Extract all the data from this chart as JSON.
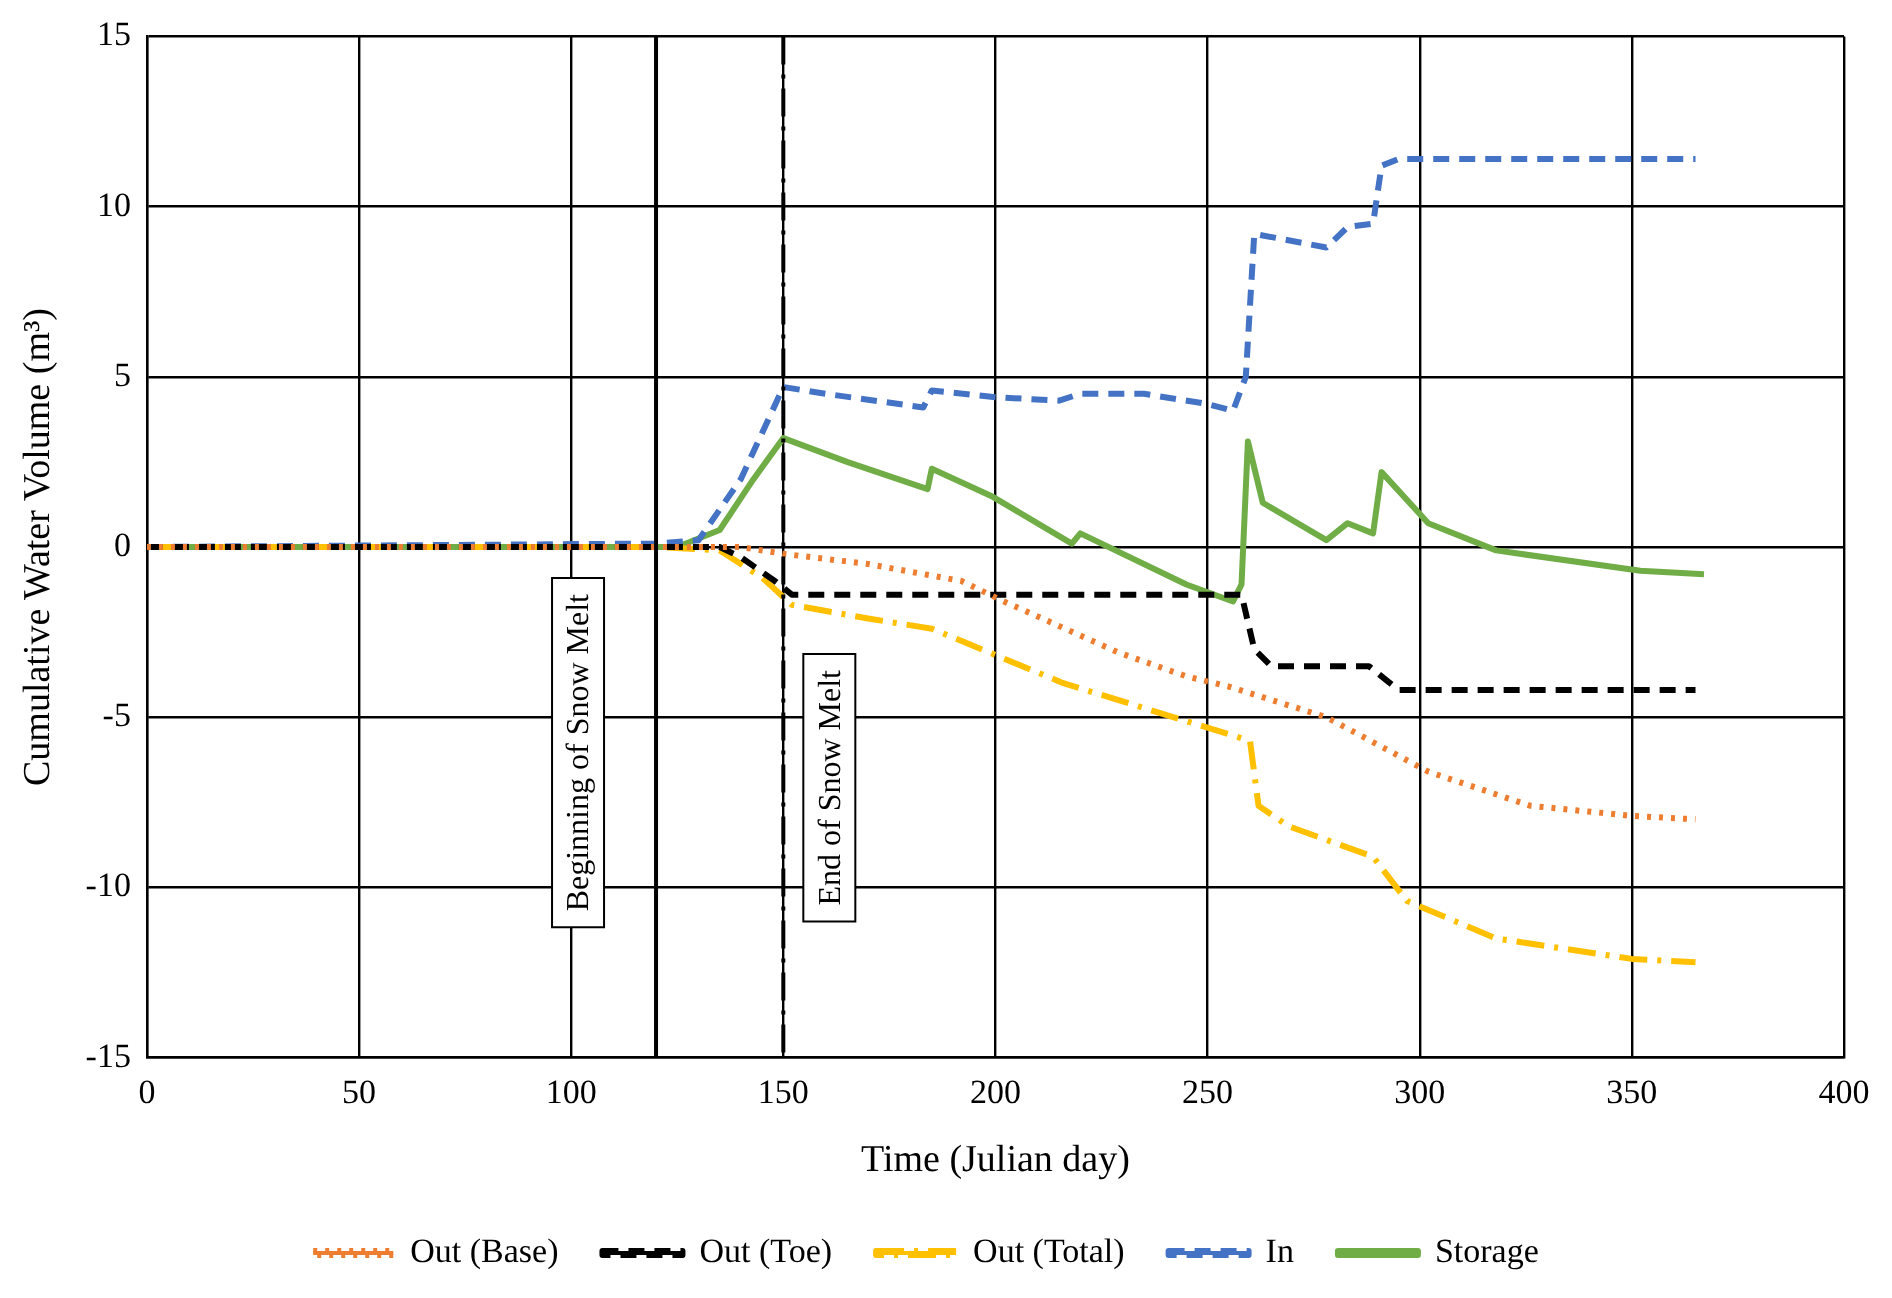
{
  "chart_data": {
    "type": "line",
    "xlabel": "Time (Julian day)",
    "ylabel": "Cumulative Water Volume (m³)",
    "xlim": [
      0,
      400
    ],
    "xticks": [
      0,
      50,
      100,
      150,
      200,
      250,
      300,
      350,
      400
    ],
    "ylim": [
      -15,
      15
    ],
    "yticks": [
      -15,
      -10,
      -5,
      0,
      5,
      10,
      15
    ],
    "grid": true,
    "legend": "bottom",
    "marker": "none",
    "ref_lines": [
      {
        "axis": "x",
        "value": 120,
        "label": "Beginning of Snow Melt",
        "color": "#000000",
        "line_style": "solid"
      },
      {
        "axis": "x",
        "value": 150,
        "label": "End of Snow Melt",
        "color": "#000000",
        "line_style": "dashdot"
      }
    ],
    "series": [
      {
        "name": "Out (Base)",
        "color": "#ed7d31",
        "line_style": "dotted",
        "x": [
          0,
          140,
          150,
          170,
          192,
          202,
          229,
          245,
          255,
          278,
          302,
          326,
          350,
          365
        ],
        "values": [
          0,
          0,
          -0.2,
          -0.5,
          -1.0,
          -1.6,
          -3.1,
          -3.8,
          -4.1,
          -5.0,
          -6.6,
          -7.6,
          -7.9,
          -8.0
        ]
      },
      {
        "name": "Out (Toe)",
        "color": "#000000",
        "line_style": "dashed",
        "x": [
          0,
          135,
          140,
          148,
          152,
          258,
          261,
          265,
          288,
          295,
          365
        ],
        "values": [
          0,
          0,
          -0.3,
          -1.0,
          -1.4,
          -1.4,
          -3.0,
          -3.5,
          -3.5,
          -4.2,
          -4.2
        ]
      },
      {
        "name": "Out (Total)",
        "color": "#ffc000",
        "line_style": "dashdot",
        "x": [
          0,
          120,
          135,
          145,
          152,
          170,
          185,
          216,
          255,
          260,
          262,
          269,
          289,
          297,
          318,
          350,
          365
        ],
        "values": [
          0,
          0,
          -0.1,
          -0.9,
          -1.7,
          -2.1,
          -2.4,
          -4.0,
          -5.5,
          -5.7,
          -7.6,
          -8.2,
          -9.1,
          -10.4,
          -11.5,
          -12.1,
          -12.2
        ]
      },
      {
        "name": "In",
        "color": "#4472c4",
        "line_style": "dashed",
        "x": [
          0,
          120,
          130,
          140,
          150,
          160,
          183,
          185,
          200,
          215,
          220,
          235,
          250,
          256,
          259,
          261,
          278,
          283,
          289,
          291,
          295,
          365
        ],
        "values": [
          0,
          0.1,
          0.2,
          2.0,
          4.7,
          4.5,
          4.1,
          4.6,
          4.4,
          4.3,
          4.5,
          4.5,
          4.2,
          4.0,
          5.0,
          9.2,
          8.8,
          9.4,
          9.5,
          11.2,
          11.4,
          11.4
        ]
      },
      {
        "name": "Storage",
        "color": "#70ad47",
        "line_style": "solid",
        "x": [
          0,
          125,
          135,
          143,
          150,
          165,
          184,
          185,
          199,
          218,
          220,
          245,
          256,
          258,
          259.5,
          263,
          278,
          283,
          289,
          291,
          302,
          318,
          352,
          367
        ],
        "values": [
          0,
          0,
          0.5,
          2.0,
          3.2,
          2.5,
          1.7,
          2.3,
          1.5,
          0.1,
          0.4,
          -1.1,
          -1.6,
          -1.1,
          3.1,
          1.3,
          0.2,
          0.7,
          0.4,
          2.2,
          0.7,
          -0.1,
          -0.7,
          -0.8
        ]
      }
    ]
  }
}
